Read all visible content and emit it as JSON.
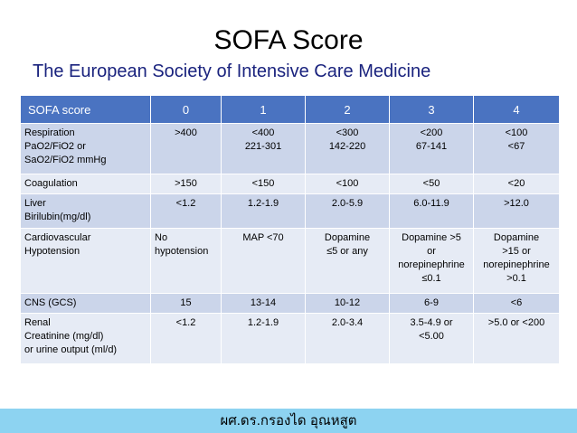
{
  "title": "SOFA Score",
  "subtitle": "The European Society of Intensive Care Medicine",
  "table": {
    "headers": [
      "SOFA score",
      "0",
      "1",
      "2",
      "3",
      "4"
    ],
    "rows": [
      {
        "label_lines": [
          "Respiration",
          "PaO2/FiO2 or",
          "SaO2/FiO2 mmHg"
        ],
        "cells": [
          ">400",
          "<400\n221-301",
          "<300\n142-220",
          "<200\n67-141",
          "<100\n<67"
        ]
      },
      {
        "label_lines": [
          "Coagulation"
        ],
        "cells": [
          ">150",
          "<150",
          "<100",
          "<50",
          "<20"
        ]
      },
      {
        "label_lines": [
          "Liver",
          "Birilubin(mg/dl)"
        ],
        "cells": [
          "<1.2",
          "1.2-1.9",
          "2.0-5.9",
          "6.0-11.9",
          ">12.0"
        ]
      },
      {
        "label_lines": [
          "Cardiovascular",
          "Hypotension"
        ],
        "cells": [
          "No\nhypotension",
          "MAP <70",
          "Dopamine\n≤5 or any",
          "Dopamine >5\nor\nnorepinephrine\n≤0.1",
          "Dopamine\n>15 or\nnorepinephrine\n>0.1"
        ]
      },
      {
        "label_lines": [
          "CNS (GCS)"
        ],
        "cells": [
          "15",
          "13-14",
          "10-12",
          "6-9",
          "<6"
        ]
      },
      {
        "label_lines": [
          "Renal",
          "Creatinine (mg/dl)",
          "or urine output (ml/d)"
        ],
        "cells": [
          "<1.2",
          "1.2-1.9",
          "2.0-3.4",
          "3.5-4.9 or\n<5.00",
          ">5.0 or <200"
        ]
      }
    ]
  },
  "footer": "ผศ.ดร.กรองได อุณหสูต"
}
